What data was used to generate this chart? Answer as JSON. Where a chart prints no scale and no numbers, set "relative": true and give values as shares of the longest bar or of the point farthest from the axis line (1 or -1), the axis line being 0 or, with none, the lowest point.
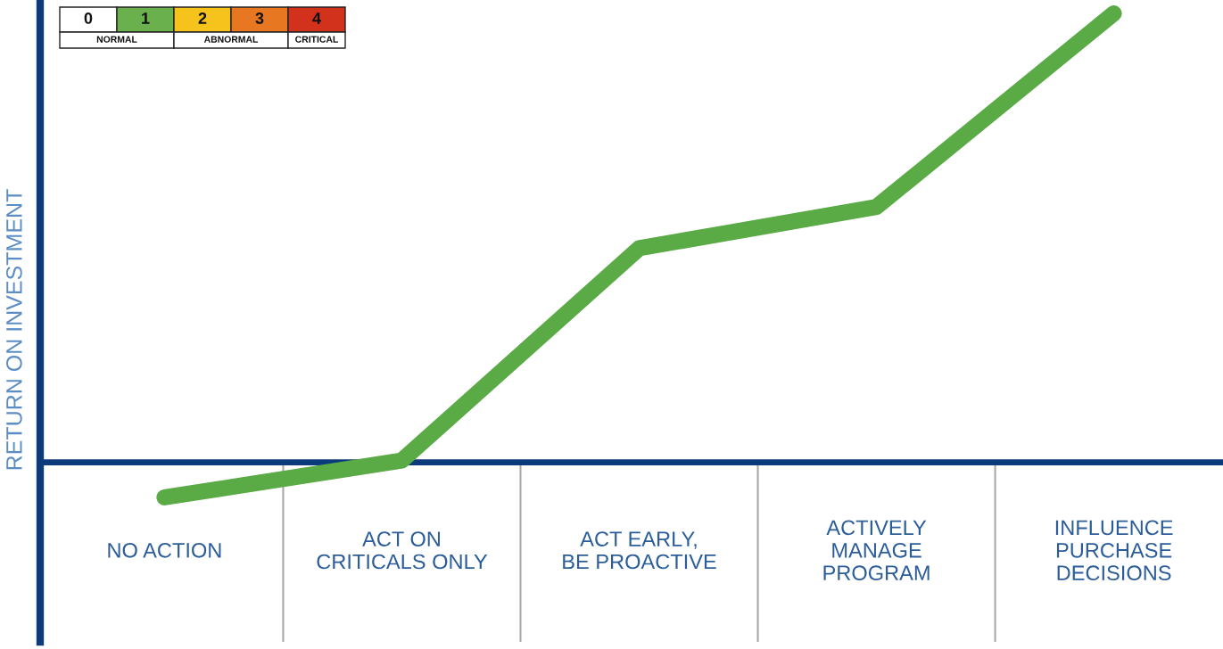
{
  "chart_data": {
    "type": "line",
    "relative": true,
    "categories": [
      "NO ACTION",
      "ACT ON\nCRITICALS ONLY",
      "ACT EARLY,\nBE PROACTIVE",
      "ACTIVELY\nMANAGE\nPROGRAM",
      "INFLUENCE\nPURCHASE\nDECISIONS"
    ],
    "series": [
      {
        "color": "#5aaa46",
        "values": [
          -0.078,
          0.004,
          0.477,
          0.569,
          1
        ]
      }
    ],
    "ylabel": "RETURN ON INVESTMENT",
    "annotations": [
      "0",
      "1",
      "2",
      "3",
      "4",
      "NORMAL",
      "ABNORMAL",
      "CRITICAL"
    ],
    "ref_lines": [
      {
        "axis": "y",
        "value": 0,
        "color": "#0d3a7a"
      }
    ],
    "line_style": "solid"
  }
}
